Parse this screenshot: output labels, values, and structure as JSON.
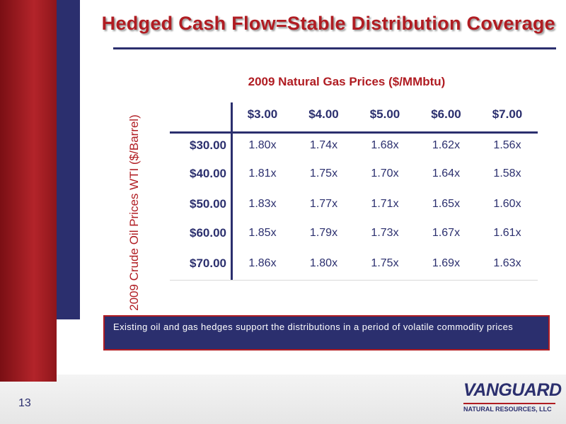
{
  "title": "Hedged Cash Flow=Stable Distribution Coverage",
  "table": {
    "title": "2009 Natural Gas Prices ($/MMbtu)",
    "row_axis_label": "2009 Crude Oil Prices WTI ($/Barrel)",
    "columns": [
      "$3.00",
      "$4.00",
      "$5.00",
      "$6.00",
      "$7.00"
    ],
    "rows": [
      {
        "label": "$30.00",
        "cells": [
          "1.80x",
          "1.74x",
          "1.68x",
          "1.62x",
          "1.56x"
        ]
      },
      {
        "label": "$40.00",
        "cells": [
          "1.81x",
          "1.75x",
          "1.70x",
          "1.64x",
          "1.58x"
        ]
      },
      {
        "label": "$50.00",
        "cells": [
          "1.83x",
          "1.77x",
          "1.71x",
          "1.65x",
          "1.60x"
        ]
      },
      {
        "label": "$60.00",
        "cells": [
          "1.85x",
          "1.79x",
          "1.73x",
          "1.67x",
          "1.61x"
        ]
      },
      {
        "label": "$70.00",
        "cells": [
          "1.86x",
          "1.80x",
          "1.75x",
          "1.69x",
          "1.63x"
        ]
      }
    ]
  },
  "callout": "Existing oil and gas hedges support the distributions in a period of volatile commodity prices",
  "page_number": "13",
  "logo": {
    "name": "VANGUARD",
    "subtitle": "NATURAL RESOURCES, LLC"
  }
}
